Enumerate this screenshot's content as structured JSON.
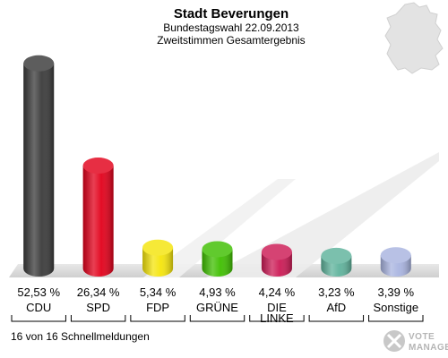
{
  "chart_data": {
    "type": "bar",
    "title": "Stadt Beverungen",
    "subtitle_1": "Bundestagswahl 22.09.2013",
    "subtitle_2": "Zweitstimmen Gesamtergebnis",
    "categories": [
      "CDU",
      "SPD",
      "FDP",
      "GRÜNE",
      "DIE LINKE",
      "AfD",
      "Sonstige"
    ],
    "category_lines": [
      [
        "CDU"
      ],
      [
        "SPD"
      ],
      [
        "FDP"
      ],
      [
        "GRÜNE"
      ],
      [
        "DIE",
        "LINKE"
      ],
      [
        "AfD"
      ],
      [
        "Sonstige"
      ]
    ],
    "values": [
      52.53,
      26.34,
      5.34,
      4.93,
      4.24,
      3.23,
      3.39
    ],
    "value_labels": [
      "52,53 %",
      "26,34 %",
      "5,34 %",
      "4,93 %",
      "4,24 %",
      "3,23 %",
      "3,39 %"
    ],
    "colors": [
      "#3a3a3a",
      "#e2001a",
      "#f5e50b",
      "#3fbf00",
      "#cc1a55",
      "#5fb39c",
      "#a9b4e0"
    ],
    "ylim": [
      0,
      55
    ],
    "grid": false
  },
  "footer": {
    "status": "16 von 16 Schnellmeldungen",
    "brand_line1": "VOTE",
    "brand_line2": "MANAGER"
  }
}
